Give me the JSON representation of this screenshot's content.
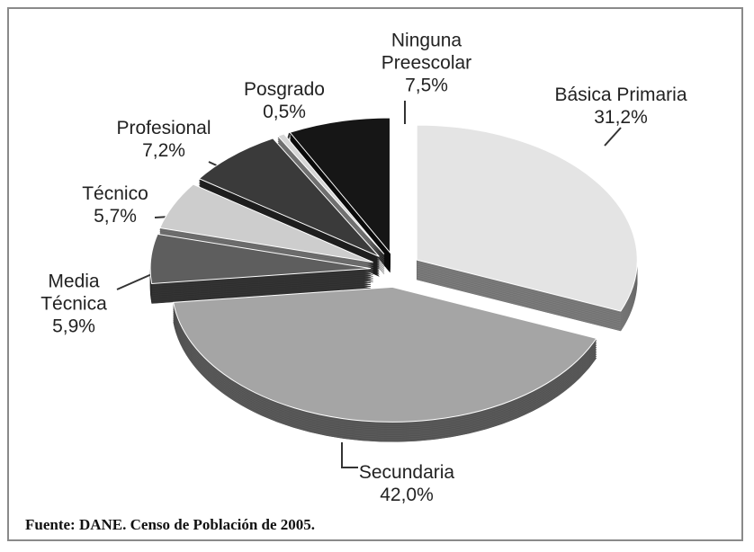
{
  "chart_data": {
    "type": "pie",
    "categories": [
      "Básica Primaria",
      "Secundaria",
      "Media Técnica",
      "Técnico",
      "Profesional",
      "Posgrado",
      "Ninguna Preescolar"
    ],
    "values": [
      31.2,
      42.0,
      5.9,
      5.7,
      7.2,
      0.5,
      7.5
    ],
    "value_labels": [
      "31,2%",
      "42,0%",
      "5,9%",
      "5,7%",
      "7,2%",
      "0,5%",
      "7,5%"
    ],
    "colors": [
      "#e4e4e4",
      "#a5a5a5",
      "#5e5e5e",
      "#cdcdcd",
      "#3a3a3a",
      "#d6d6d6",
      "#161616"
    ]
  },
  "source": "Fuente: DANE. Censo de Población de 2005."
}
